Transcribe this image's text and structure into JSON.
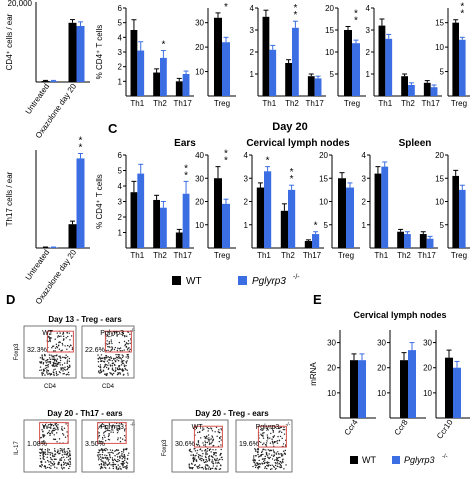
{
  "colors": {
    "wt": "#000000",
    "ko": "#3b6ee3",
    "gate": "#d9534f",
    "dot": "#222222"
  },
  "panel_letters": {
    "C": "C",
    "D": "D",
    "E": "E"
  },
  "section_titles": {
    "c_day": "Day 20",
    "c_ears": "Ears",
    "c_cln": "Cervical lymph nodes",
    "c_spleen": "Spleen",
    "e_title": "Cervical lymph nodes"
  },
  "legend_mid": {
    "wt": "WT",
    "ko": "Pglyrp3",
    "ko_sup": "-/-"
  },
  "legend_e": {
    "wt": "WT",
    "ko": "Pglyrp3",
    "ko_sup": "-/-"
  },
  "flow": {
    "d_top_title": "Day 13 - Treg - ears",
    "d_top_wt_label": "WT",
    "d_top_ko_label": "Pglyrp3",
    "d_top_ko_sup": "-/-",
    "d_top_wt_pct": "32.3%",
    "d_top_ko_pct": "22.6%",
    "d_top_xlabel": "CD4",
    "d_top_ylabel": "Foxp3",
    "d_bl_title": "Day 20 - Th17 - ears",
    "d_bl_wt_label": "WT",
    "d_bl_ko_label": "Pglyrp3",
    "d_bl_ko_sup": "-/-",
    "d_bl_wt_pct": "1.08%",
    "d_bl_ko_pct": "3.50%",
    "d_bl_ylabel": "IL-17",
    "d_br_title": "Day 20 - Treg - ears",
    "d_br_wt_label": "WT",
    "d_br_ko_label": "Pglyrp3",
    "d_br_ko_sup": "-/-",
    "d_br_wt_pct": "30.6%",
    "d_br_ko_pct": "19.6%",
    "d_br_ylabel": "Foxp3"
  },
  "chart_data": [
    {
      "id": "cd4_count",
      "type": "bar",
      "ylabel": "CD4⁺ cells / ear",
      "ylim": [
        0,
        25
      ],
      "yticks": [],
      "top_tick": "20,000",
      "categories": [
        "Untreated",
        "Oxazolone day 20"
      ],
      "series": [
        {
          "name": "WT",
          "values": [
            0.3,
            18.5
          ],
          "errors": [
            0.2,
            1.0
          ]
        },
        {
          "name": "Pglyrp3-/-",
          "values": [
            0.3,
            17.5
          ],
          "errors": [
            0.2,
            1.3
          ]
        }
      ],
      "stars": []
    },
    {
      "id": "th17_count",
      "type": "bar",
      "ylabel": "Th17 cells / ear",
      "ylim": [
        0,
        700
      ],
      "yticks": [],
      "categories": [
        "Untreated",
        "Oxazolone day 20"
      ],
      "series": [
        {
          "name": "WT",
          "values": [
            4,
            170
          ],
          "errors": [
            3,
            22
          ]
        },
        {
          "name": "Pglyrp3-/-",
          "values": [
            4,
            640
          ],
          "errors": [
            3,
            35
          ]
        }
      ],
      "stars": [
        {
          "cat": 1,
          "text": "*\n*"
        }
      ]
    },
    {
      "id": "top_th",
      "type": "bar",
      "ylabel": "% CD4⁺ T cells",
      "ylim": [
        0,
        6
      ],
      "yticks": [
        1,
        2,
        3,
        4,
        5,
        6
      ],
      "categories": [
        "Th1",
        "Th2",
        "Th17"
      ],
      "series": [
        {
          "name": "WT",
          "values": [
            4.5,
            1.6,
            1.0
          ],
          "errors": [
            0.7,
            0.25,
            0.2
          ]
        },
        {
          "name": "Pglyrp3-/-",
          "values": [
            3.1,
            2.6,
            1.5
          ],
          "errors": [
            0.6,
            0.5,
            0.2
          ]
        }
      ],
      "stars": [
        {
          "cat": 1,
          "text": "*"
        }
      ]
    },
    {
      "id": "top_treg",
      "type": "bar",
      "ylabel": "",
      "ylim": [
        0,
        36
      ],
      "yticks": [
        10,
        20,
        30
      ],
      "categories": [
        "Treg"
      ],
      "series": [
        {
          "name": "WT",
          "values": [
            32
          ],
          "errors": [
            2
          ]
        },
        {
          "name": "Pglyrp3-/-",
          "values": [
            22
          ],
          "errors": [
            2
          ]
        }
      ],
      "stars": [
        {
          "cat": 0,
          "text": "*\n*"
        }
      ]
    },
    {
      "id": "top_cln_th",
      "type": "bar",
      "ylabel": "",
      "ylim": [
        0,
        4
      ],
      "yticks": [
        1,
        2,
        3,
        4
      ],
      "categories": [
        "Th1",
        "Th2",
        "Th17"
      ],
      "series": [
        {
          "name": "WT",
          "values": [
            3.6,
            1.5,
            0.9
          ],
          "errors": [
            0.3,
            0.15,
            0.1
          ]
        },
        {
          "name": "Pglyrp3-/-",
          "values": [
            2.1,
            3.1,
            0.8
          ],
          "errors": [
            0.2,
            0.3,
            0.1
          ]
        }
      ],
      "stars": [
        {
          "cat": 1,
          "text": "*\n*"
        }
      ]
    },
    {
      "id": "top_cln_treg",
      "type": "bar",
      "ylabel": "",
      "ylim": [
        0,
        20
      ],
      "yticks": [
        5,
        10,
        15,
        20
      ],
      "categories": [
        "Treg"
      ],
      "series": [
        {
          "name": "WT",
          "values": [
            15
          ],
          "errors": [
            0.8
          ]
        },
        {
          "name": "Pglyrp3-/-",
          "values": [
            12
          ],
          "errors": [
            0.7
          ]
        }
      ],
      "stars": [
        {
          "cat": 0,
          "text": "*\n*"
        }
      ]
    },
    {
      "id": "top_spl_th",
      "type": "bar",
      "ylabel": "",
      "ylim": [
        0,
        4
      ],
      "yticks": [
        1,
        2,
        3,
        4
      ],
      "categories": [
        "Th1",
        "Th2",
        "Th17"
      ],
      "series": [
        {
          "name": "WT",
          "values": [
            3.2,
            0.9,
            0.6
          ],
          "errors": [
            0.3,
            0.1,
            0.1
          ]
        },
        {
          "name": "Pglyrp3-/-",
          "values": [
            2.6,
            0.5,
            0.4
          ],
          "errors": [
            0.2,
            0.1,
            0.1
          ]
        }
      ],
      "stars": []
    },
    {
      "id": "top_spl_treg",
      "type": "bar",
      "ylabel": "",
      "ylim": [
        0,
        18
      ],
      "yticks": [
        5,
        10,
        15
      ],
      "categories": [
        "Treg"
      ],
      "series": [
        {
          "name": "WT",
          "values": [
            15
          ],
          "errors": [
            0.6
          ]
        },
        {
          "name": "Pglyrp3-/-",
          "values": [
            11.5
          ],
          "errors": [
            0.5
          ]
        }
      ],
      "stars": [
        {
          "cat": 0,
          "text": "*\n*\n*"
        }
      ]
    },
    {
      "id": "ears_th",
      "type": "bar",
      "ylabel": "% CD4⁺ T cells",
      "ylim": [
        0,
        6
      ],
      "yticks": [
        1,
        2,
        3,
        4,
        5,
        6
      ],
      "categories": [
        "Th1",
        "Th2",
        "Th17"
      ],
      "series": [
        {
          "name": "WT",
          "values": [
            3.6,
            3.1,
            1.0
          ],
          "errors": [
            0.7,
            0.3,
            0.2
          ]
        },
        {
          "name": "Pglyrp3-/-",
          "values": [
            4.8,
            2.6,
            3.5
          ],
          "errors": [
            0.6,
            0.4,
            0.8
          ]
        }
      ],
      "stars": [
        {
          "cat": 2,
          "text": "*\n*"
        }
      ]
    },
    {
      "id": "ears_treg",
      "type": "bar",
      "ylabel": "",
      "ylim": [
        0,
        40
      ],
      "yticks": [
        10,
        20,
        30,
        40
      ],
      "categories": [
        "Treg"
      ],
      "series": [
        {
          "name": "WT",
          "values": [
            30
          ],
          "errors": [
            5
          ]
        },
        {
          "name": "Pglyrp3-/-",
          "values": [
            19
          ],
          "errors": [
            2
          ]
        }
      ],
      "stars": [
        {
          "cat": 0,
          "text": "*\n*"
        }
      ]
    },
    {
      "id": "cln_th",
      "type": "bar",
      "ylabel": "",
      "ylim": [
        0,
        4
      ],
      "yticks": [
        1,
        2,
        3,
        4
      ],
      "categories": [
        "Th1",
        "Th2",
        "Th17"
      ],
      "series": [
        {
          "name": "WT",
          "values": [
            2.6,
            1.6,
            0.3
          ],
          "errors": [
            0.2,
            0.3,
            0.05
          ]
        },
        {
          "name": "Pglyrp3-/-",
          "values": [
            3.3,
            2.5,
            0.6
          ],
          "errors": [
            0.2,
            0.2,
            0.1
          ]
        }
      ],
      "stars": [
        {
          "cat": 0,
          "text": "*"
        },
        {
          "cat": 1,
          "text": "*\n*"
        },
        {
          "cat": 2,
          "text": "*"
        }
      ]
    },
    {
      "id": "cln_treg",
      "type": "bar",
      "ylabel": "",
      "ylim": [
        0,
        20
      ],
      "yticks": [
        5,
        10,
        15,
        20
      ],
      "categories": [
        "Treg"
      ],
      "series": [
        {
          "name": "WT",
          "values": [
            15
          ],
          "errors": [
            1.2
          ]
        },
        {
          "name": "Pglyrp3-/-",
          "values": [
            13
          ],
          "errors": [
            1.0
          ]
        }
      ],
      "stars": []
    },
    {
      "id": "spl_th",
      "type": "bar",
      "ylabel": "",
      "ylim": [
        0,
        4
      ],
      "yticks": [
        1,
        2,
        3,
        4
      ],
      "categories": [
        "Th1",
        "Th2",
        "Th17"
      ],
      "series": [
        {
          "name": "WT",
          "values": [
            3.2,
            0.7,
            0.6
          ],
          "errors": [
            0.3,
            0.1,
            0.1
          ]
        },
        {
          "name": "Pglyrp3-/-",
          "values": [
            3.5,
            0.6,
            0.4
          ],
          "errors": [
            0.2,
            0.1,
            0.1
          ]
        }
      ],
      "stars": []
    },
    {
      "id": "spl_treg",
      "type": "bar",
      "ylabel": "",
      "ylim": [
        0,
        20
      ],
      "yticks": [
        5,
        10,
        15,
        20
      ],
      "categories": [
        "Treg"
      ],
      "series": [
        {
          "name": "WT",
          "values": [
            15.5
          ],
          "errors": [
            1.2
          ]
        },
        {
          "name": "Pglyrp3-/-",
          "values": [
            12.5
          ],
          "errors": [
            1.0
          ]
        }
      ],
      "stars": []
    },
    {
      "id": "e_ccr4",
      "type": "bar",
      "ylabel": "mRNA",
      "ylim": [
        0,
        35
      ],
      "yticks": [
        10,
        20,
        30
      ],
      "categories": [
        "Ccr4"
      ],
      "series": [
        {
          "name": "WT",
          "values": [
            23
          ],
          "errors": [
            2.5
          ]
        },
        {
          "name": "Pglyrp3-/-",
          "values": [
            23
          ],
          "errors": [
            2.5
          ]
        }
      ],
      "stars": []
    },
    {
      "id": "e_ccr8",
      "type": "bar",
      "ylabel": "",
      "ylim": [
        0,
        35
      ],
      "yticks": [
        10,
        20,
        30
      ],
      "categories": [
        "Ccr8"
      ],
      "series": [
        {
          "name": "WT",
          "values": [
            23
          ],
          "errors": [
            3
          ]
        },
        {
          "name": "Pglyrp3-/-",
          "values": [
            27
          ],
          "errors": [
            3
          ]
        }
      ],
      "stars": []
    },
    {
      "id": "e_ccr10",
      "type": "bar",
      "ylabel": "",
      "ylim": [
        0,
        35
      ],
      "yticks": [
        10,
        20,
        30
      ],
      "categories": [
        "Ccr10"
      ],
      "series": [
        {
          "name": "WT",
          "values": [
            24
          ],
          "errors": [
            3
          ]
        },
        {
          "name": "Pglyrp3-/-",
          "values": [
            20
          ],
          "errors": [
            2.5
          ]
        }
      ],
      "stars": []
    }
  ]
}
